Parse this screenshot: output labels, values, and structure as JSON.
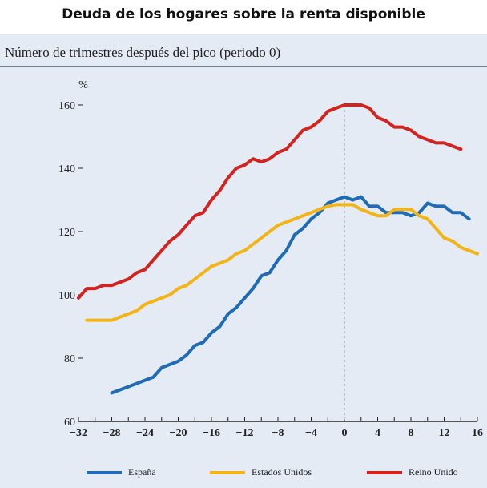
{
  "chart_data": {
    "type": "line",
    "title": "Deuda de los hogares sobre la renta disponible",
    "subtitle": "Número de trimestres después del pico (periodo 0)",
    "ylabel": "%",
    "xlim": [
      -32,
      16
    ],
    "ylim": [
      60,
      160
    ],
    "xticks": [
      -32,
      -28,
      -24,
      -20,
      -16,
      -12,
      -8,
      -4,
      0,
      4,
      8,
      12,
      16
    ],
    "yticks": [
      60,
      80,
      100,
      120,
      140,
      160
    ],
    "reference_line_x": 0,
    "legend_position": "bottom",
    "series": [
      {
        "name": "España",
        "color": "#1f6bb5",
        "x": [
          -28,
          -27,
          -26,
          -25,
          -24,
          -23,
          -22,
          -21,
          -20,
          -19,
          -18,
          -17,
          -16,
          -15,
          -14,
          -13,
          -12,
          -11,
          -10,
          -9,
          -8,
          -7,
          -6,
          -5,
          -4,
          -3,
          -2,
          -1,
          0,
          1,
          2,
          3,
          4,
          5,
          6,
          7,
          8,
          9,
          10,
          11,
          12,
          13,
          14,
          15
        ],
        "y": [
          69,
          70,
          71,
          72,
          73,
          74,
          77,
          78,
          79,
          81,
          84,
          85,
          88,
          90,
          94,
          96,
          99,
          102,
          106,
          107,
          111,
          114,
          119,
          121,
          124,
          126,
          129,
          130,
          131,
          130,
          131,
          128,
          128,
          126,
          126,
          126,
          125,
          126,
          129,
          128,
          128,
          126,
          126,
          124
        ]
      },
      {
        "name": "Estados Unidos",
        "color": "#f3b418",
        "x": [
          -31,
          -30,
          -29,
          -28,
          -27,
          -26,
          -25,
          -24,
          -23,
          -22,
          -21,
          -20,
          -19,
          -18,
          -17,
          -16,
          -15,
          -14,
          -13,
          -12,
          -11,
          -10,
          -9,
          -8,
          -7,
          -6,
          -5,
          -4,
          -3,
          -2,
          -1,
          0,
          1,
          2,
          3,
          4,
          5,
          6,
          7,
          8,
          9,
          10,
          11,
          12,
          13,
          14,
          15,
          16
        ],
        "y": [
          92,
          92,
          92,
          92,
          93,
          94,
          95,
          97,
          98,
          99,
          100,
          102,
          103,
          105,
          107,
          109,
          110,
          111,
          113,
          114,
          116,
          118,
          120,
          122,
          123,
          124,
          125,
          126,
          127,
          128,
          128.5,
          128.5,
          128.5,
          127,
          126,
          125,
          125,
          127,
          127,
          127,
          125,
          124,
          121,
          118,
          117,
          115,
          114,
          113
        ]
      },
      {
        "name": "Reino Unido",
        "color": "#d2231f",
        "x": [
          -32,
          -31,
          -30,
          -29,
          -28,
          -27,
          -26,
          -25,
          -24,
          -23,
          -22,
          -21,
          -20,
          -19,
          -18,
          -17,
          -16,
          -15,
          -14,
          -13,
          -12,
          -11,
          -10,
          -9,
          -8,
          -7,
          -6,
          -5,
          -4,
          -3,
          -2,
          -1,
          0,
          1,
          2,
          3,
          4,
          5,
          6,
          7,
          8,
          9,
          10,
          11,
          12,
          13,
          14
        ],
        "y": [
          99,
          102,
          102,
          103,
          103,
          104,
          105,
          107,
          108,
          111,
          114,
          117,
          119,
          122,
          125,
          126,
          130,
          133,
          137,
          140,
          141,
          143,
          142,
          143,
          145,
          146,
          149,
          152,
          153,
          155,
          158,
          159,
          160,
          160,
          160,
          159,
          156,
          155,
          153,
          153,
          152,
          150,
          149,
          148,
          148,
          147,
          146
        ]
      }
    ]
  }
}
